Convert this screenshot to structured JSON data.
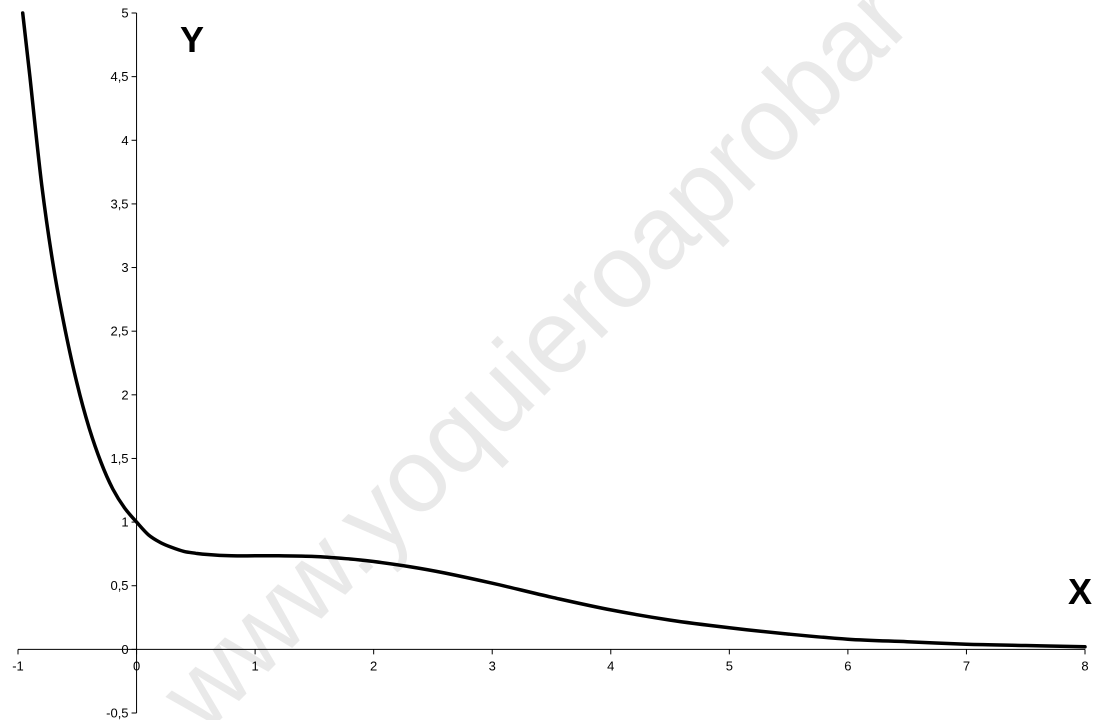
{
  "watermark": "www.yoquieroaprobar",
  "chart_data": {
    "type": "line",
    "title": "",
    "xlabel": "X",
    "ylabel": "Y",
    "xlim": [
      -1,
      8
    ],
    "ylim": [
      -0.5,
      5
    ],
    "grid": false,
    "legend": "none",
    "x_ticks": [
      "-1",
      "0",
      "1",
      "2",
      "3",
      "4",
      "5",
      "6",
      "7",
      "8"
    ],
    "y_ticks": [
      "-0,5",
      "0",
      "0,5",
      "1",
      "1,5",
      "2",
      "2,5",
      "3",
      "3,5",
      "4",
      "4,5",
      "5"
    ],
    "series": [
      {
        "color": "#000000",
        "x": [
          -0.96,
          -0.9,
          -0.8,
          -0.7,
          -0.6,
          -0.5,
          -0.4,
          -0.3,
          -0.2,
          -0.1,
          0,
          0.1,
          0.2,
          0.3,
          0.4,
          0.5,
          0.6,
          0.8,
          1,
          1.2,
          1.5,
          1.8,
          2,
          2.3,
          2.6,
          3,
          3.5,
          4,
          4.5,
          5,
          5.5,
          6,
          6.5,
          7,
          7.5,
          8
        ],
        "y": [
          5.0,
          4.5,
          3.65,
          3.0,
          2.5,
          2.08,
          1.74,
          1.47,
          1.26,
          1.11,
          1.0,
          0.9,
          0.84,
          0.8,
          0.77,
          0.755,
          0.745,
          0.735,
          0.735,
          0.735,
          0.73,
          0.71,
          0.69,
          0.65,
          0.6,
          0.52,
          0.41,
          0.31,
          0.23,
          0.17,
          0.12,
          0.08,
          0.06,
          0.04,
          0.03,
          0.02
        ]
      }
    ]
  }
}
